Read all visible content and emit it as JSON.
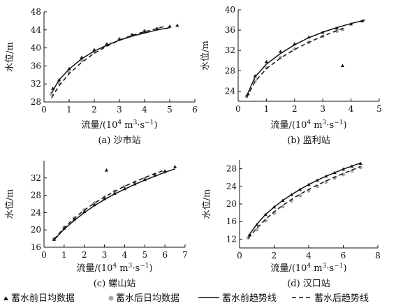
{
  "chart_data": [
    {
      "type": "scatter",
      "caption": "(a) 沙市站",
      "xlabel": "流量/(10⁴ m³·s⁻¹)",
      "ylabel": "水位/m",
      "xlim": [
        0,
        6
      ],
      "ylim": [
        28,
        48
      ],
      "xticks": [
        0,
        1,
        2,
        3,
        4,
        5,
        6
      ],
      "yticks": [
        28,
        32,
        36,
        40,
        44,
        48
      ],
      "series": [
        {
          "name": "蓄水前日均数据",
          "marker": "triangle",
          "x": [
            0.35,
            0.6,
            1.0,
            1.5,
            2.0,
            2.5,
            3.0,
            3.5,
            4.0,
            4.5,
            5.0,
            5.3
          ],
          "y": [
            31.0,
            32.9,
            35.4,
            37.9,
            39.6,
            40.9,
            42.0,
            42.9,
            43.7,
            44.3,
            44.8,
            45.0
          ]
        },
        {
          "name": "蓄水后日均数据",
          "marker": "circle",
          "x": [
            0.3,
            0.6,
            1.0,
            1.5,
            2.0,
            2.5,
            3.0,
            3.5,
            4.0,
            4.5
          ],
          "y": [
            29.8,
            32.2,
            34.6,
            37.2,
            39.1,
            40.6,
            41.9,
            42.9,
            43.8,
            44.2
          ]
        },
        {
          "name": "蓄水前趋势线",
          "line": "solid",
          "x": [
            0.3,
            0.6,
            1.0,
            1.5,
            2.0,
            2.5,
            3.0,
            3.5,
            4.0,
            4.5,
            5.0
          ],
          "y": [
            30.0,
            32.9,
            35.3,
            37.6,
            39.3,
            40.6,
            41.7,
            42.6,
            43.3,
            44.0,
            44.5
          ]
        },
        {
          "name": "蓄水后趋势线",
          "line": "dashed",
          "x": [
            0.3,
            0.6,
            1.0,
            1.5,
            2.0,
            2.5,
            3.0,
            3.5,
            4.0,
            4.5,
            4.8
          ],
          "y": [
            28.9,
            31.6,
            34.3,
            36.8,
            38.8,
            40.4,
            41.7,
            42.8,
            43.6,
            44.3,
            44.8
          ]
        }
      ]
    },
    {
      "type": "scatter",
      "caption": "(b) 监利站",
      "xlabel": "流量/(10⁴ m³·s⁻¹)",
      "ylabel": "水位/m",
      "xlim": [
        0,
        5
      ],
      "ylim": [
        22,
        40
      ],
      "xticks": [
        0,
        1,
        2,
        3,
        4,
        5
      ],
      "yticks": [
        24,
        28,
        32,
        36,
        40
      ],
      "series": [
        {
          "name": "蓄水前日均数据",
          "marker": "triangle",
          "x": [
            0.35,
            0.6,
            1.0,
            1.5,
            2.0,
            2.5,
            3.0,
            3.5,
            4.0,
            4.4,
            3.7
          ],
          "y": [
            23.5,
            27.0,
            29.8,
            31.8,
            33.3,
            34.6,
            35.6,
            36.4,
            37.2,
            37.8,
            29.0
          ]
        },
        {
          "name": "蓄水后日均数据",
          "marker": "circle",
          "x": [
            0.3,
            0.6,
            1.0,
            1.5,
            2.0,
            2.5,
            3.0,
            3.5,
            3.7
          ],
          "y": [
            23.0,
            26.0,
            28.6,
            30.6,
            32.3,
            33.6,
            34.8,
            35.8,
            36.1
          ]
        },
        {
          "name": "蓄水前趋势线",
          "line": "solid",
          "x": [
            0.3,
            0.6,
            1.0,
            1.5,
            2.0,
            2.5,
            3.0,
            3.5,
            4.0,
            4.5
          ],
          "y": [
            23.0,
            26.8,
            29.3,
            31.4,
            33.1,
            34.5,
            35.6,
            36.5,
            37.3,
            38.0
          ]
        },
        {
          "name": "蓄水后趋势线",
          "line": "dashed",
          "x": [
            0.3,
            0.6,
            1.0,
            1.5,
            2.0,
            2.5,
            3.0,
            3.5,
            3.8
          ],
          "y": [
            22.7,
            25.9,
            28.4,
            30.5,
            32.2,
            33.6,
            34.8,
            35.9,
            36.5
          ]
        }
      ]
    },
    {
      "type": "scatter",
      "caption": "(c) 螺山站",
      "xlabel": "流量/(10⁴ m³·s⁻¹)",
      "ylabel": "水位/m",
      "xlim": [
        0,
        7
      ],
      "ylim": [
        16,
        36
      ],
      "xticks": [
        0,
        1,
        2,
        3,
        4,
        5,
        6,
        7
      ],
      "yticks": [
        16,
        20,
        24,
        28,
        32
      ],
      "series": [
        {
          "name": "蓄水前日均数据",
          "marker": "triangle",
          "x": [
            0.5,
            1.0,
            1.5,
            2.0,
            2.5,
            3.0,
            3.5,
            4.0,
            4.5,
            5.0,
            5.5,
            6.0,
            6.5,
            3.1
          ],
          "y": [
            17.8,
            20.4,
            22.4,
            24.2,
            25.8,
            27.2,
            28.4,
            29.5,
            30.6,
            31.6,
            32.6,
            33.6,
            34.6,
            33.8
          ]
        },
        {
          "name": "蓄水后日均数据",
          "marker": "circle",
          "x": [
            0.5,
            1.0,
            1.5,
            2.0,
            2.5,
            3.0,
            3.5,
            4.0,
            4.5,
            5.0,
            5.5,
            6.0
          ],
          "y": [
            18.0,
            20.6,
            22.7,
            24.6,
            26.2,
            27.6,
            28.9,
            30.0,
            31.0,
            31.9,
            32.8,
            33.4
          ]
        },
        {
          "name": "蓄水前趋势线",
          "line": "solid",
          "x": [
            0.5,
            1.0,
            1.5,
            2.0,
            2.5,
            3.0,
            3.5,
            4.0,
            4.5,
            5.0,
            5.5,
            6.0,
            6.5
          ],
          "y": [
            17.7,
            20.2,
            22.2,
            24.0,
            25.6,
            27.0,
            28.3,
            29.4,
            30.5,
            31.5,
            32.4,
            33.3,
            34.1
          ]
        },
        {
          "name": "蓄水后趋势线",
          "line": "dashed",
          "x": [
            0.5,
            1.0,
            1.5,
            2.0,
            2.5,
            3.0,
            3.5,
            4.0,
            4.5,
            5.0,
            5.5,
            6.0
          ],
          "y": [
            17.8,
            20.5,
            22.7,
            24.6,
            26.2,
            27.6,
            28.9,
            30.1,
            31.1,
            32.1,
            33.0,
            33.8
          ]
        }
      ]
    },
    {
      "type": "scatter",
      "caption": "(d) 汉口站",
      "xlabel": "流量/(10⁴ m³·s⁻¹)",
      "ylabel": "水位/m",
      "xlim": [
        0,
        8
      ],
      "ylim": [
        10,
        30
      ],
      "xticks": [
        0,
        2,
        4,
        6,
        8
      ],
      "yticks": [
        12,
        16,
        20,
        24,
        28
      ],
      "series": [
        {
          "name": "蓄水前日均数据",
          "marker": "triangle",
          "x": [
            0.6,
            1.0,
            1.5,
            2.0,
            2.5,
            3.0,
            3.5,
            4.0,
            4.5,
            5.0,
            5.5,
            6.0,
            6.5,
            7.0
          ],
          "y": [
            13.0,
            15.3,
            17.6,
            19.3,
            20.8,
            22.1,
            23.3,
            24.4,
            25.4,
            26.3,
            27.1,
            27.9,
            28.6,
            29.2
          ]
        },
        {
          "name": "蓄水后日均数据",
          "marker": "circle",
          "x": [
            0.5,
            1.0,
            1.5,
            2.0,
            2.5,
            3.0,
            3.5,
            4.0,
            4.5,
            5.0,
            5.5,
            6.0,
            6.5,
            7.0
          ],
          "y": [
            12.3,
            14.2,
            16.2,
            17.9,
            19.4,
            20.7,
            21.9,
            23.0,
            24.0,
            25.0,
            25.9,
            26.7,
            27.5,
            28.3
          ]
        },
        {
          "name": "蓄水前趋势线",
          "line": "solid",
          "x": [
            0.5,
            1.0,
            1.5,
            2.0,
            2.5,
            3.0,
            3.5,
            4.0,
            4.5,
            5.0,
            5.5,
            6.0,
            6.5,
            7.0
          ],
          "y": [
            12.7,
            15.4,
            17.6,
            19.3,
            20.8,
            22.1,
            23.3,
            24.4,
            25.4,
            26.3,
            27.1,
            27.9,
            28.6,
            29.3
          ]
        },
        {
          "name": "蓄水后趋势线",
          "line": "dashed",
          "x": [
            0.5,
            1.0,
            1.5,
            2.0,
            2.5,
            3.0,
            3.5,
            4.0,
            4.5,
            5.0,
            5.5,
            6.0,
            6.5,
            7.0
          ],
          "y": [
            12.2,
            14.5,
            16.5,
            18.2,
            19.7,
            21.0,
            22.2,
            23.3,
            24.3,
            25.2,
            26.1,
            26.9,
            27.7,
            28.5
          ]
        }
      ]
    }
  ],
  "legend": {
    "items": [
      {
        "label": "蓄水前日均数据",
        "symbol": "triangle"
      },
      {
        "label": "蓄水后日均数据",
        "symbol": "circle"
      },
      {
        "label": "蓄水前趋势线",
        "symbol": "solid"
      },
      {
        "label": "蓄水后趋势线",
        "symbol": "dashed"
      }
    ]
  },
  "colors": {
    "before_data": "#1a1a1a",
    "after_data": "#a6a6a6",
    "axis": "#111111"
  }
}
